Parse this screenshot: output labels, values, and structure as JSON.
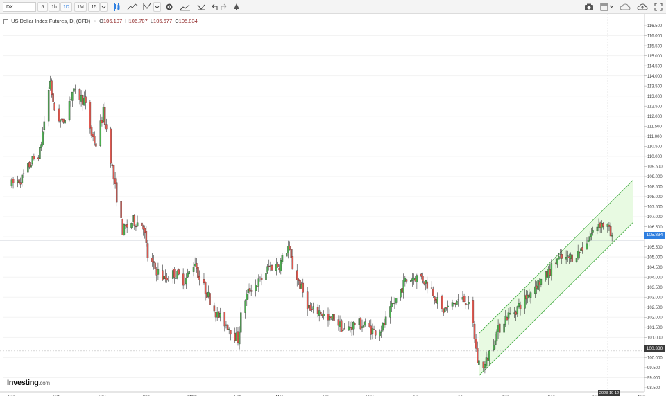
{
  "toolbar": {
    "symbol": "DX",
    "intervals": [
      "5",
      "1h",
      "1D",
      "1M",
      "15"
    ],
    "active_interval": "1D",
    "icons": [
      "chevron-down-icon",
      "candles-icon",
      "line-chart-icon",
      "indicators-icon",
      "chevron-down-icon",
      "settings-icon",
      "compare-icon",
      "templates-icon",
      "undo-icon",
      "redo-icon",
      "alert-icon",
      "camera-icon",
      "layout-icon",
      "chevron-down-icon",
      "cloud-icon",
      "cloud-save-icon",
      "fullscreen-icon"
    ]
  },
  "legend": {
    "title": "US Dollar Index Futures, D, (CFD)",
    "open_label": "O",
    "open": "106.107",
    "high_label": "H",
    "high": "106.707",
    "low_label": "L",
    "low": "105.677",
    "close_label": "C",
    "close": "105.834"
  },
  "price_tag": "105.834",
  "level_tag": "100.330",
  "date_tag": "2023-10-12",
  "logo": {
    "brand": "Investing",
    "suffix": ".com"
  },
  "colors": {
    "up": "#4caf50",
    "down": "#e0584f",
    "channel_fill": "#e6f9df",
    "channel_line": "#3aa63a",
    "accent": "#2f7fe0"
  },
  "chart_data": {
    "type": "candlestick",
    "title": "US Dollar Index Futures, D, (CFD)",
    "y_axis": {
      "position": "right",
      "range": [
        98.5,
        116.5
      ],
      "step": 0.5
    },
    "x_tick_labels": [
      "Sep",
      "Oct",
      "Nov",
      "Dec",
      "2023",
      "Feb",
      "Mar",
      "Apr",
      "May",
      "Jun",
      "Jul",
      "Aug",
      "Sep",
      "Oct",
      "Nov"
    ],
    "horizontal_lines": [
      105.834,
      100.33
    ],
    "channel": {
      "upper": {
        "start": {
          "date": "2023-07-14",
          "value": 101.2
        },
        "end": {
          "date": "2023-10-26",
          "value": 108.8
        }
      },
      "lower": {
        "start": {
          "date": "2023-07-14",
          "value": 99.1
        },
        "end": {
          "date": "2023-10-26",
          "value": 106.7
        }
      }
    },
    "series_anchors": [
      [
        "2022-09-01",
        108.6
      ],
      [
        "2022-09-08",
        108.9
      ],
      [
        "2022-09-14",
        109.7
      ],
      [
        "2022-09-20",
        110.2
      ],
      [
        "2022-09-27",
        113.8
      ],
      [
        "2022-09-29",
        112.5
      ],
      [
        "2022-10-05",
        111.6
      ],
      [
        "2022-10-12",
        113.2
      ],
      [
        "2022-10-20",
        112.8
      ],
      [
        "2022-10-25",
        111.1
      ],
      [
        "2022-10-28",
        110.6
      ],
      [
        "2022-11-02",
        112.2
      ],
      [
        "2022-11-05",
        110.9
      ],
      [
        "2022-11-10",
        108.4
      ],
      [
        "2022-11-15",
        106.3
      ],
      [
        "2022-11-22",
        106.8
      ],
      [
        "2022-11-29",
        106.6
      ],
      [
        "2022-12-02",
        105.0
      ],
      [
        "2022-12-06",
        104.5
      ],
      [
        "2022-12-13",
        103.9
      ],
      [
        "2022-12-20",
        104.2
      ],
      [
        "2022-12-27",
        103.8
      ],
      [
        "2023-01-03",
        104.8
      ],
      [
        "2023-01-06",
        103.9
      ],
      [
        "2023-01-11",
        103.2
      ],
      [
        "2023-01-18",
        102.1
      ],
      [
        "2023-01-25",
        101.6
      ],
      [
        "2023-02-01",
        100.9
      ],
      [
        "2023-02-04",
        102.6
      ],
      [
        "2023-02-09",
        103.4
      ],
      [
        "2023-02-16",
        103.8
      ],
      [
        "2023-02-22",
        104.5
      ],
      [
        "2023-03-01",
        104.6
      ],
      [
        "2023-03-07",
        105.5
      ],
      [
        "2023-03-10",
        104.5
      ],
      [
        "2023-03-15",
        103.6
      ],
      [
        "2023-03-22",
        102.3
      ],
      [
        "2023-03-29",
        102.3
      ],
      [
        "2023-04-03",
        101.8
      ],
      [
        "2023-04-07",
        102.0
      ],
      [
        "2023-04-14",
        101.3
      ],
      [
        "2023-04-21",
        101.7
      ],
      [
        "2023-04-28",
        101.6
      ],
      [
        "2023-05-04",
        101.3
      ],
      [
        "2023-05-10",
        101.5
      ],
      [
        "2023-05-17",
        102.6
      ],
      [
        "2023-05-25",
        103.8
      ],
      [
        "2023-05-31",
        104.0
      ],
      [
        "2023-06-05",
        104.0
      ],
      [
        "2023-06-12",
        103.4
      ],
      [
        "2023-06-19",
        102.3
      ],
      [
        "2023-06-26",
        102.6
      ],
      [
        "2023-07-01",
        102.9
      ],
      [
        "2023-07-06",
        102.8
      ],
      [
        "2023-07-10",
        101.6
      ],
      [
        "2023-07-13",
        99.8
      ],
      [
        "2023-07-18",
        99.6
      ],
      [
        "2023-07-25",
        101.1
      ],
      [
        "2023-08-01",
        102.0
      ],
      [
        "2023-08-07",
        102.3
      ],
      [
        "2023-08-14",
        102.9
      ],
      [
        "2023-08-21",
        103.6
      ],
      [
        "2023-08-28",
        104.0
      ],
      [
        "2023-09-05",
        104.9
      ],
      [
        "2023-09-12",
        104.9
      ],
      [
        "2023-09-19",
        105.2
      ],
      [
        "2023-09-26",
        105.9
      ],
      [
        "2023-10-03",
        106.7
      ],
      [
        "2023-10-09",
        106.5
      ],
      [
        "2023-10-12",
        105.834
      ]
    ]
  }
}
